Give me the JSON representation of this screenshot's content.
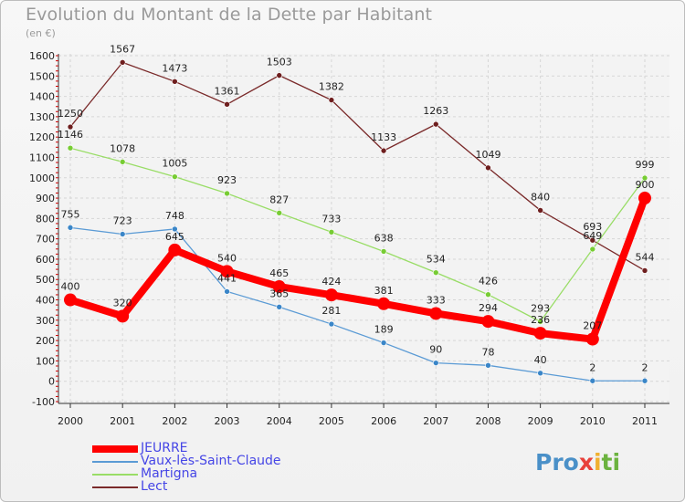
{
  "chart_data": {
    "type": "line",
    "title": "Evolution du Montant de la Dette par Habitant",
    "subtitle": "(en €)",
    "categories": [
      "2000",
      "2001",
      "2002",
      "2003",
      "2004",
      "2005",
      "2006",
      "2007",
      "2008",
      "2009",
      "2010",
      "2011"
    ],
    "ylim": [
      -100,
      1600
    ],
    "yticks": [
      -100,
      0,
      100,
      200,
      300,
      400,
      500,
      600,
      700,
      800,
      900,
      1000,
      1100,
      1200,
      1300,
      1400,
      1500,
      1600
    ],
    "grid": true,
    "legend_position": "bottom-left",
    "series": [
      {
        "name": "Lect",
        "color": "#7a2a2a",
        "marker_color": "#6e1e1e",
        "values": [
          1250,
          1567,
          1473,
          1361,
          1503,
          1382,
          1133,
          1263,
          1049,
          840,
          693,
          544
        ],
        "labels": [
          "1250",
          "1567",
          "1473",
          "1361",
          "1503",
          "1382",
          "1133",
          "1263",
          "1049",
          "840",
          "693",
          "544"
        ]
      },
      {
        "name": "Martigna",
        "color": "#99dd66",
        "marker_color": "#77cc33",
        "values": [
          1146,
          1078,
          1005,
          923,
          827,
          733,
          638,
          534,
          426,
          293,
          649,
          999
        ],
        "labels": [
          "1146",
          "1078",
          "1005",
          "923",
          "827",
          "733",
          "638",
          "534",
          "426",
          "293",
          "649",
          "999"
        ]
      },
      {
        "name": "Vaux-lès-Saint-Claude",
        "color": "#5b9bd5",
        "marker_color": "#3a86c8",
        "values": [
          755,
          723,
          748,
          441,
          365,
          281,
          189,
          90,
          78,
          40,
          2,
          2
        ],
        "labels": [
          "755",
          "723",
          "748",
          "441",
          "365",
          "281",
          "189",
          "90",
          "78",
          "40",
          "2",
          "2"
        ]
      },
      {
        "name": "JEURRE",
        "color": "#ff0000",
        "marker_color": "#ff0000",
        "values": [
          400,
          320,
          645,
          540,
          465,
          424,
          381,
          333,
          294,
          236,
          207,
          900
        ],
        "labels": [
          "400",
          "320",
          "645",
          "540",
          "465",
          "424",
          "381",
          "333",
          "294",
          "236",
          "207",
          "900"
        ]
      }
    ]
  },
  "legend": [
    {
      "name": "JEURRE",
      "color": "#ff0000",
      "thick": true
    },
    {
      "name": "Vaux-lès-Saint-Claude",
      "color": "#5b9bd5",
      "thick": false
    },
    {
      "name": "Martigna",
      "color": "#99dd66",
      "thick": false
    },
    {
      "name": "Lect",
      "color": "#7a2a2a",
      "thick": false
    }
  ],
  "logo": {
    "part1": "Pro",
    "part2": "x",
    "part3": "i",
    "part4": "ti"
  }
}
